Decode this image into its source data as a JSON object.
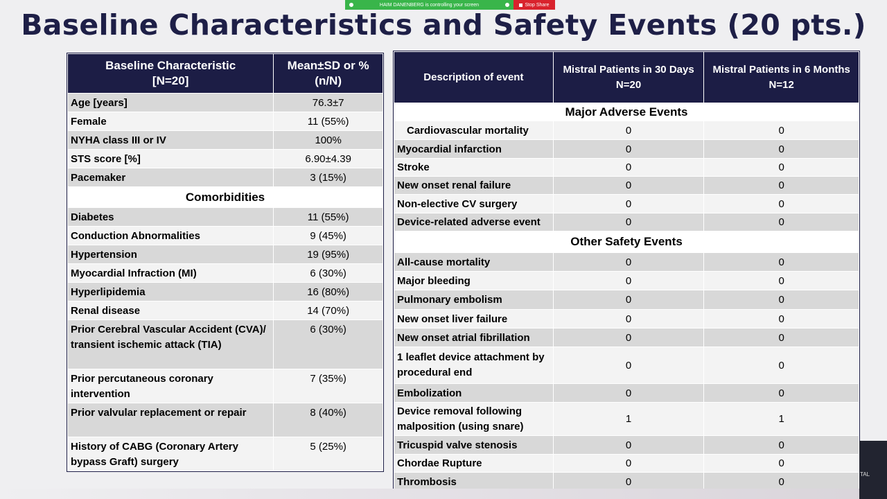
{
  "share_bar": {
    "message": "HAIM DANENBERG is controlling your screen",
    "stop_label": "Stop Share"
  },
  "title": "Baseline Characteristics and Safety Events (20 pts.)",
  "left_table": {
    "header": {
      "col1_line1": "Baseline Characteristic",
      "col1_line2": "[N=20]",
      "col2_line1": "Mean±SD or %",
      "col2_line2": "(n/N)"
    },
    "rows_top": [
      {
        "label": "Age [years]",
        "value": "76.3±7"
      },
      {
        "label": "Female",
        "value": "11 (55%)"
      },
      {
        "label": "NYHA class III or IV",
        "value": "100%"
      },
      {
        "label": "STS score [%]",
        "value": "6.90±4.39"
      },
      {
        "label": "Pacemaker",
        "value": "3 (15%)"
      }
    ],
    "section": "Comorbidities",
    "rows_comorb": [
      {
        "label": "Diabetes",
        "value": "11 (55%)"
      },
      {
        "label": "Conduction Abnormalities",
        "value": "9 (45%)"
      },
      {
        "label": "Hypertension",
        "value": "19 (95%)"
      },
      {
        "label": "Myocardial Infraction (MI)",
        "value": "6 (30%)"
      },
      {
        "label": "Hyperlipidemia",
        "value": "16 (80%)"
      },
      {
        "label": "Renal disease",
        "value": "14 (70%)"
      },
      {
        "label": "Prior Cerebral Vascular Accident (CVA)/ transient ischemic attack (TIA)",
        "value": "6 (30%)"
      },
      {
        "label": "Prior percutaneous coronary intervention",
        "value": "7 (35%)"
      },
      {
        "label": "Prior valvular replacement or repair",
        "value": "8 (40%)"
      },
      {
        "label": "History of CABG (Coronary Artery bypass Graft) surgery",
        "value": "5 (25%)"
      }
    ]
  },
  "right_table": {
    "header": {
      "col1": "Description of event",
      "col2_line1": "Mistral Patients in 30 Days",
      "col2_line2": "N=20",
      "col3_line1": "Mistral Patients in 6 Months",
      "col3_line2": "N=12"
    },
    "section1": "Major Adverse Events",
    "rows_major": [
      {
        "label": "Cardiovascular mortality",
        "d30": "0",
        "m6": "0"
      },
      {
        "label": "Myocardial infarction",
        "d30": "0",
        "m6": "0"
      },
      {
        "label": "Stroke",
        "d30": "0",
        "m6": "0"
      },
      {
        "label": "New onset renal failure",
        "d30": "0",
        "m6": "0"
      },
      {
        "label": "Non-elective CV surgery",
        "d30": "0",
        "m6": "0"
      },
      {
        "label": "Device-related adverse event",
        "d30": "0",
        "m6": "0"
      }
    ],
    "section2": "Other Safety Events",
    "rows_other": [
      {
        "label": "All-cause mortality",
        "d30": "0",
        "m6": "0"
      },
      {
        "label": "Major bleeding",
        "d30": "0",
        "m6": "0"
      },
      {
        "label": "Pulmonary embolism",
        "d30": "0",
        "m6": "0"
      },
      {
        "label": "New onset liver failure",
        "d30": "0",
        "m6": "0"
      },
      {
        "label": "New onset atrial fibrillation",
        "d30": "0",
        "m6": "0"
      },
      {
        "label": "1 leaflet device attachment by procedural end",
        "d30": "0",
        "m6": "0"
      },
      {
        "label": "Embolization",
        "d30": "0",
        "m6": "0"
      },
      {
        "label": "Device removal following malposition (using snare)",
        "d30": "1",
        "m6": "1"
      },
      {
        "label": "Tricuspid valve stenosis",
        "d30": "0",
        "m6": "0"
      },
      {
        "label": "Chordae Rupture",
        "d30": "0",
        "m6": "0"
      },
      {
        "label": "Thrombosis",
        "d30": "0",
        "m6": "0"
      }
    ]
  },
  "corner_text": "TAL"
}
